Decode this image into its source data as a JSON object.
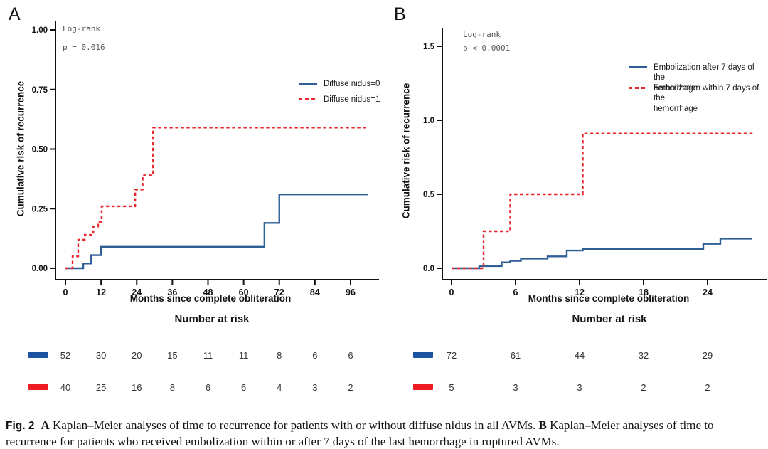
{
  "figure_title": "Fig. 2",
  "colors": {
    "blue": "#2e5f95",
    "red": "#e8282c",
    "marker_blue": "#1d53a3",
    "marker_red": "#ec1c24",
    "axis": "#111111",
    "stat_text": "#555555",
    "risk_number": "#333333"
  },
  "chart_data": [
    {
      "type": "line",
      "panel_label": "A",
      "subtype": "kaplan-meier-step",
      "stats": {
        "test": "Log-rank",
        "p_value": "p = 0.016"
      },
      "xlabel": "Months since complete obliteration",
      "ylabel": "Cumulative risk of recurrence",
      "risk_table_title": "Number at risk",
      "xlim": [
        0,
        105
      ],
      "ylim": [
        0,
        1.0
      ],
      "xticks": [
        "0",
        "12",
        "24",
        "36",
        "48",
        "60",
        "72",
        "84",
        "96"
      ],
      "yticks": [
        "1.00",
        "0.75",
        "0.50",
        "0.25",
        "0.00"
      ],
      "grid": false,
      "legend_position": "upper-right-inside",
      "series": [
        {
          "name": "Diffuse nidus=0",
          "color": "blue",
          "style": "solid",
          "points": [
            [
              0,
              0
            ],
            [
              6,
              0.02
            ],
            [
              8.6,
              0.055
            ],
            [
              12,
              0.09
            ],
            [
              67,
              0.19
            ],
            [
              72,
              0.31
            ],
            [
              101.8,
              0.31
            ]
          ]
        },
        {
          "name": "Diffuse nidus=1",
          "color": "red",
          "style": "dashed",
          "points": [
            [
              0,
              0
            ],
            [
              2.4,
              0.05
            ],
            [
              4.3,
              0.12
            ],
            [
              6.5,
              0.14
            ],
            [
              9.4,
              0.175
            ],
            [
              11,
              0.195
            ],
            [
              12.2,
              0.26
            ],
            [
              23.5,
              0.33
            ],
            [
              26,
              0.39
            ],
            [
              29.5,
              0.59
            ],
            [
              101.8,
              0.59
            ]
          ]
        }
      ],
      "number_at_risk": [
        {
          "series": "Diffuse nidus=0",
          "color": "blue",
          "counts": [
            52,
            30,
            20,
            15,
            11,
            11,
            8,
            6,
            6
          ]
        },
        {
          "series": "Diffuse nidus=1",
          "color": "red",
          "counts": [
            40,
            25,
            16,
            8,
            6,
            6,
            4,
            3,
            2
          ]
        }
      ]
    },
    {
      "type": "line",
      "panel_label": "B",
      "subtype": "kaplan-meier-step",
      "stats": {
        "test": "Log-rank",
        "p_value": "p < 0.0001"
      },
      "xlabel": "Months since complete obliteration",
      "ylabel": "Cumulative risk of recurrence",
      "risk_table_title": "Number at risk",
      "xlim": [
        0,
        29
      ],
      "ylim": [
        0,
        1.5
      ],
      "xticks": [
        "0",
        "6",
        "12",
        "18",
        "24"
      ],
      "yticks": [
        "1.5",
        "1.0",
        "0.5",
        "0.0"
      ],
      "grid": false,
      "legend_position": "upper-right-inside",
      "series": [
        {
          "name": "Embolization after 7 days of the\nhemorrhage",
          "color": "blue",
          "style": "solid",
          "points": [
            [
              0,
              0
            ],
            [
              2.6,
              0.015
            ],
            [
              4.7,
              0.04
            ],
            [
              5.5,
              0.05
            ],
            [
              6.5,
              0.065
            ],
            [
              9,
              0.08
            ],
            [
              10.8,
              0.12
            ],
            [
              12.3,
              0.13
            ],
            [
              23.6,
              0.165
            ],
            [
              25.2,
              0.2
            ],
            [
              28.2,
              0.2
            ]
          ]
        },
        {
          "name": "Embolization within 7 days of the\nhemorrhage",
          "color": "red",
          "style": "dashed",
          "points": [
            [
              0,
              0
            ],
            [
              3,
              0.25
            ],
            [
              5.5,
              0.5
            ],
            [
              12.3,
              0.91
            ],
            [
              28.4,
              0.91
            ]
          ]
        }
      ],
      "number_at_risk": [
        {
          "series": "Embolization after 7 days of the hemorrhage",
          "color": "blue",
          "counts": [
            72,
            61,
            44,
            32,
            29
          ]
        },
        {
          "series": "Embolization within 7 days of the hemorrhage",
          "color": "red",
          "counts": [
            5,
            3,
            3,
            2,
            2
          ]
        }
      ]
    }
  ],
  "caption": {
    "fig_label": "Fig. 2",
    "a_label": "A",
    "a_text": " Kaplan–Meier analyses of time to recurrence for patients with or without diffuse nidus in all AVMs. ",
    "b_label": "B",
    "b_text": " Kaplan–Meier analyses of time to recurrence for patients who received embolization within or after 7 days of the last hemorrhage in ruptured AVMs."
  }
}
